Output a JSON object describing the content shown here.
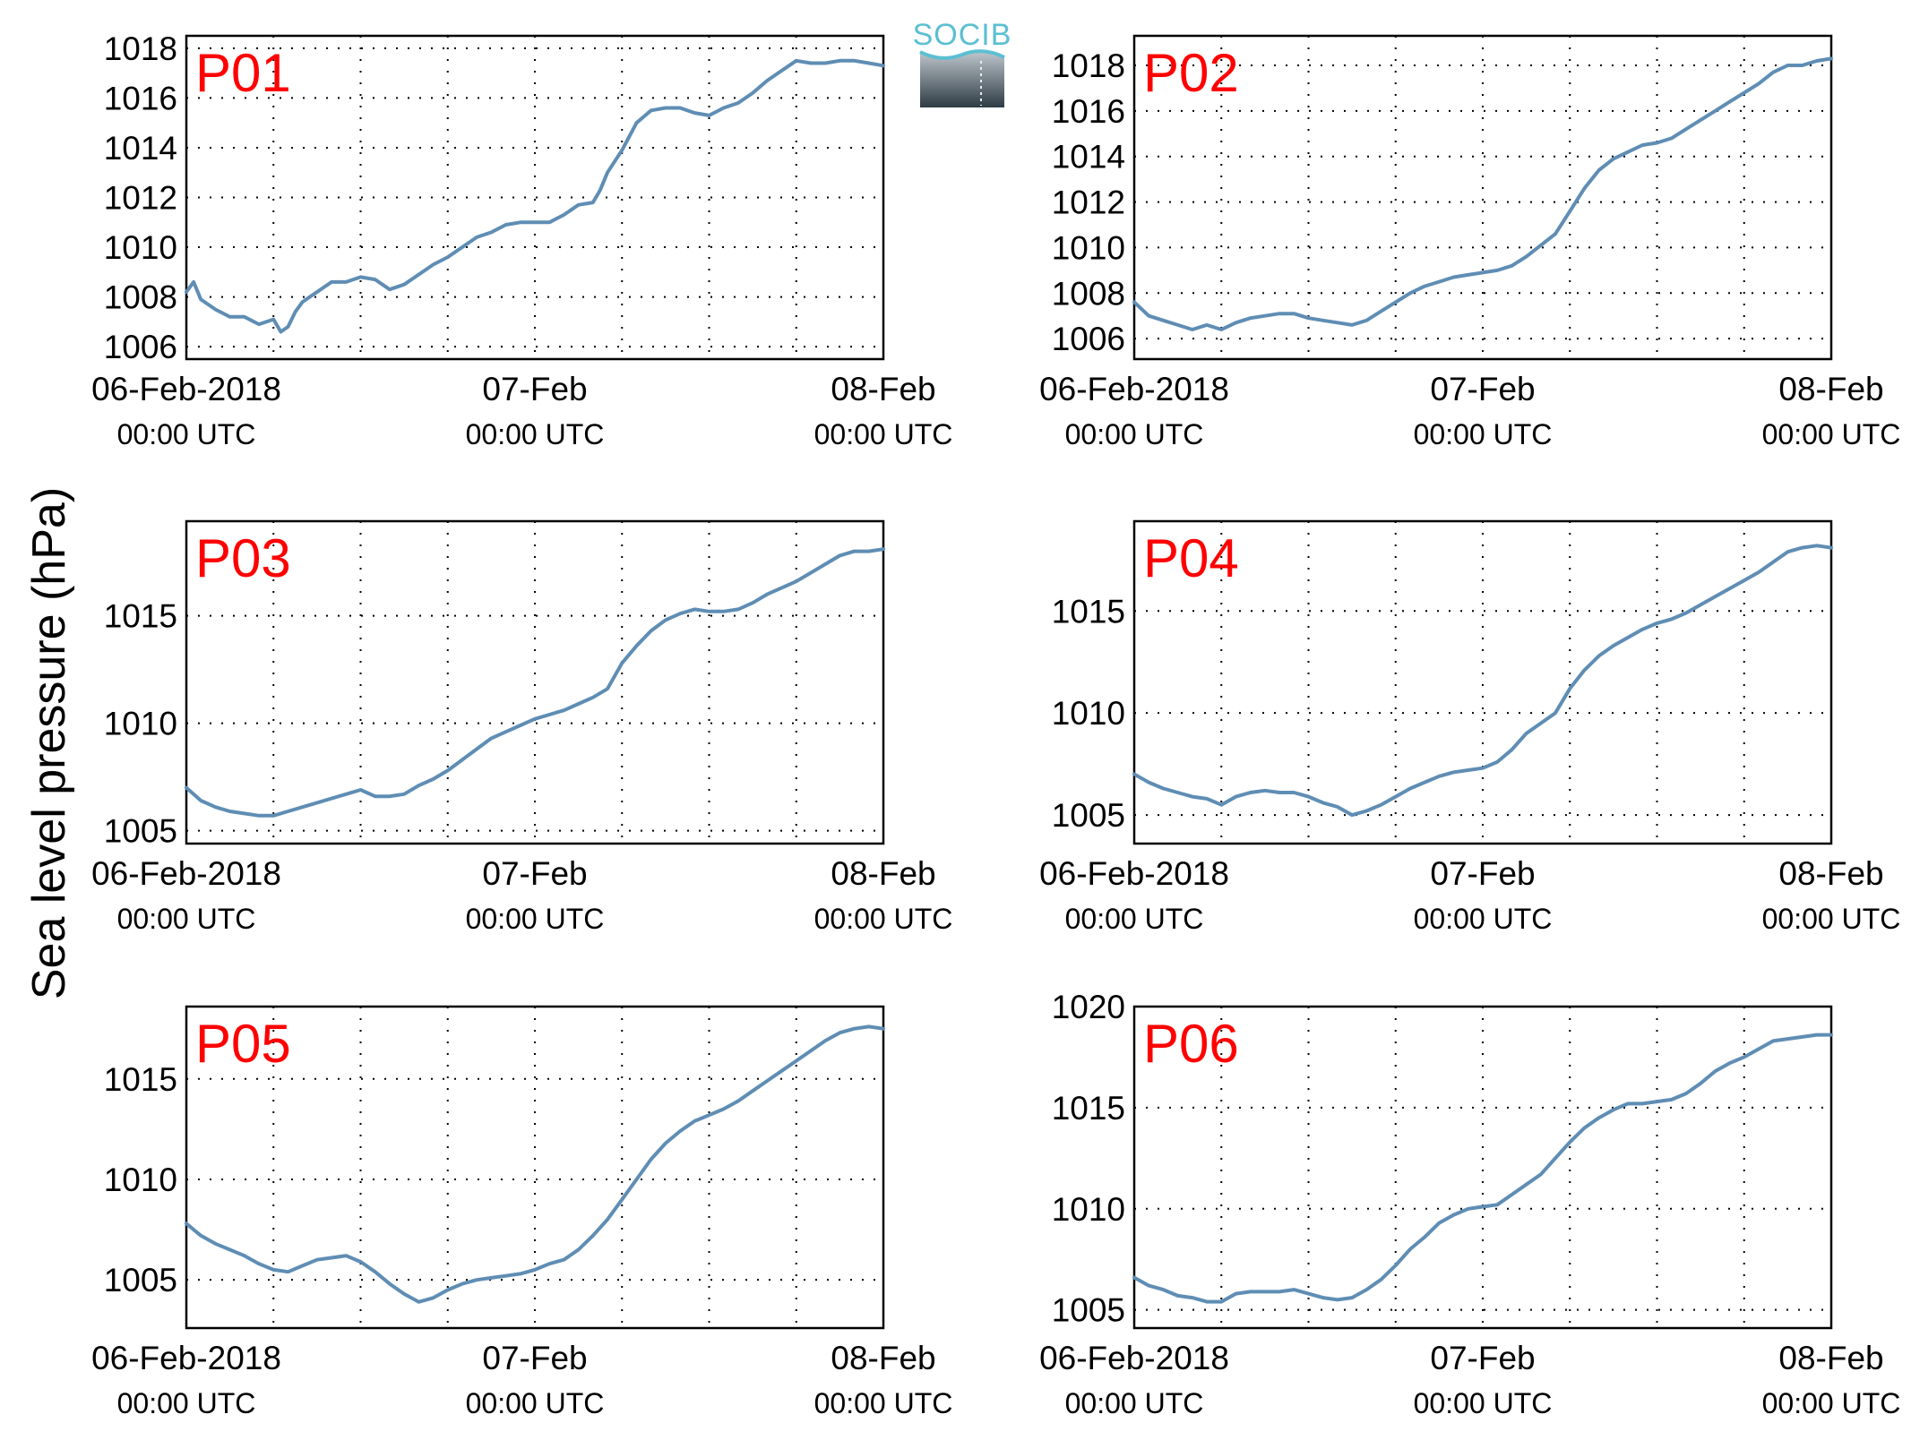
{
  "figure": {
    "ylabel": "Sea level pressure (hPa)",
    "logo_text": "SOCIB",
    "line_color": "#5f8db4",
    "label_color": "#ff0000"
  },
  "chart_data": [
    {
      "type": "line",
      "panel_label": "P01",
      "xlabel": "",
      "ylabel": "",
      "x_ticks": [
        "06-Feb-2018",
        "07-Feb",
        "08-Feb"
      ],
      "x_tick_sublabels": [
        "00:00 UTC",
        "00:00 UTC",
        "00:00 UTC"
      ],
      "xlim_hours": [
        0,
        48
      ],
      "ylim": [
        1005.5,
        1018.5
      ],
      "y_ticks": [
        1006,
        1008,
        1010,
        1012,
        1014,
        1016,
        1018
      ],
      "grid": true,
      "x_hours": [
        0,
        0.5,
        1,
        2,
        3,
        4,
        5,
        6,
        6.5,
        7,
        7.5,
        8,
        9,
        10,
        11,
        12,
        13,
        14,
        15,
        16,
        17,
        18,
        19,
        20,
        21,
        22,
        23,
        24,
        25,
        26,
        27,
        28,
        28.5,
        29,
        30,
        31,
        32,
        33,
        34,
        35,
        36,
        37,
        38,
        39,
        40,
        41,
        42,
        43,
        44,
        45,
        46,
        47,
        48
      ],
      "values": [
        1008.2,
        1008.6,
        1007.9,
        1007.5,
        1007.2,
        1007.2,
        1006.9,
        1007.1,
        1006.6,
        1006.8,
        1007.4,
        1007.8,
        1008.2,
        1008.6,
        1008.6,
        1008.8,
        1008.7,
        1008.3,
        1008.5,
        1008.9,
        1009.3,
        1009.6,
        1010.0,
        1010.4,
        1010.6,
        1010.9,
        1011.0,
        1011.0,
        1011.0,
        1011.3,
        1011.7,
        1011.8,
        1012.3,
        1013.0,
        1013.9,
        1015.0,
        1015.5,
        1015.6,
        1015.6,
        1015.4,
        1015.3,
        1015.6,
        1015.8,
        1016.2,
        1016.7,
        1017.1,
        1017.5,
        1017.4,
        1017.4,
        1017.5,
        1017.5,
        1017.4,
        1017.3
      ]
    },
    {
      "type": "line",
      "panel_label": "P02",
      "xlabel": "",
      "ylabel": "",
      "x_ticks": [
        "06-Feb-2018",
        "07-Feb",
        "08-Feb"
      ],
      "x_tick_sublabels": [
        "00:00 UTC",
        "00:00 UTC",
        "00:00 UTC"
      ],
      "xlim_hours": [
        0,
        48
      ],
      "ylim": [
        1005.1,
        1019.3
      ],
      "y_ticks": [
        1006,
        1008,
        1010,
        1012,
        1014,
        1016,
        1018
      ],
      "grid": true,
      "x_hours": [
        0,
        1,
        2,
        3,
        4,
        5,
        6,
        7,
        8,
        9,
        10,
        11,
        12,
        13,
        14,
        15,
        16,
        17,
        18,
        19,
        20,
        21,
        22,
        23,
        24,
        25,
        26,
        27,
        28,
        29,
        30,
        31,
        32,
        33,
        34,
        35,
        36,
        37,
        38,
        39,
        40,
        41,
        42,
        43,
        44,
        45,
        46,
        47,
        48
      ],
      "values": [
        1007.6,
        1007.0,
        1006.8,
        1006.6,
        1006.4,
        1006.6,
        1006.4,
        1006.7,
        1006.9,
        1007.0,
        1007.1,
        1007.1,
        1006.9,
        1006.8,
        1006.7,
        1006.6,
        1006.8,
        1007.2,
        1007.6,
        1008.0,
        1008.3,
        1008.5,
        1008.7,
        1008.8,
        1008.9,
        1009.0,
        1009.2,
        1009.6,
        1010.1,
        1010.6,
        1011.6,
        1012.6,
        1013.4,
        1013.9,
        1014.2,
        1014.5,
        1014.6,
        1014.8,
        1015.2,
        1015.6,
        1016.0,
        1016.4,
        1016.8,
        1017.2,
        1017.7,
        1018.0,
        1018.0,
        1018.2,
        1018.3
      ]
    },
    {
      "type": "line",
      "panel_label": "P03",
      "xlabel": "",
      "ylabel": "",
      "x_ticks": [
        "06-Feb-2018",
        "07-Feb",
        "08-Feb"
      ],
      "x_tick_sublabels": [
        "00:00 UTC",
        "00:00 UTC",
        "00:00 UTC"
      ],
      "xlim_hours": [
        0,
        48
      ],
      "ylim": [
        1004.4,
        1019.4
      ],
      "y_ticks": [
        1005,
        1010,
        1015
      ],
      "grid": true,
      "x_hours": [
        0,
        1,
        2,
        3,
        4,
        5,
        6,
        7,
        8,
        9,
        10,
        11,
        12,
        13,
        14,
        15,
        16,
        17,
        18,
        19,
        20,
        21,
        22,
        23,
        24,
        25,
        26,
        27,
        28,
        29,
        30,
        31,
        32,
        33,
        34,
        35,
        36,
        37,
        38,
        39,
        40,
        41,
        42,
        43,
        44,
        45,
        46,
        47,
        48
      ],
      "values": [
        1007.0,
        1006.4,
        1006.1,
        1005.9,
        1005.8,
        1005.7,
        1005.7,
        1005.9,
        1006.1,
        1006.3,
        1006.5,
        1006.7,
        1006.9,
        1006.6,
        1006.6,
        1006.7,
        1007.1,
        1007.4,
        1007.8,
        1008.3,
        1008.8,
        1009.3,
        1009.6,
        1009.9,
        1010.2,
        1010.4,
        1010.6,
        1010.9,
        1011.2,
        1011.6,
        1012.8,
        1013.6,
        1014.3,
        1014.8,
        1015.1,
        1015.3,
        1015.2,
        1015.2,
        1015.3,
        1015.6,
        1016.0,
        1016.3,
        1016.6,
        1017.0,
        1017.4,
        1017.8,
        1018.0,
        1018.0,
        1018.1
      ]
    },
    {
      "type": "line",
      "panel_label": "P04",
      "xlabel": "",
      "ylabel": "",
      "x_ticks": [
        "06-Feb-2018",
        "07-Feb",
        "08-Feb"
      ],
      "x_tick_sublabels": [
        "00:00 UTC",
        "00:00 UTC",
        "00:00 UTC"
      ],
      "xlim_hours": [
        0,
        48
      ],
      "ylim": [
        1003.6,
        1019.4
      ],
      "y_ticks": [
        1005,
        1010,
        1015
      ],
      "grid": true,
      "x_hours": [
        0,
        1,
        2,
        3,
        4,
        5,
        6,
        7,
        8,
        9,
        10,
        11,
        12,
        13,
        14,
        15,
        16,
        17,
        18,
        19,
        20,
        21,
        22,
        23,
        24,
        25,
        26,
        27,
        28,
        29,
        30,
        31,
        32,
        33,
        34,
        35,
        36,
        37,
        38,
        39,
        40,
        41,
        42,
        43,
        44,
        45,
        46,
        47,
        48
      ],
      "values": [
        1007.0,
        1006.6,
        1006.3,
        1006.1,
        1005.9,
        1005.8,
        1005.5,
        1005.9,
        1006.1,
        1006.2,
        1006.1,
        1006.1,
        1005.9,
        1005.6,
        1005.4,
        1005.0,
        1005.2,
        1005.5,
        1005.9,
        1006.3,
        1006.6,
        1006.9,
        1007.1,
        1007.2,
        1007.3,
        1007.6,
        1008.2,
        1009.0,
        1009.5,
        1010.0,
        1011.2,
        1012.1,
        1012.8,
        1013.3,
        1013.7,
        1014.1,
        1014.4,
        1014.6,
        1014.9,
        1015.3,
        1015.7,
        1016.1,
        1016.5,
        1016.9,
        1017.4,
        1017.9,
        1018.1,
        1018.2,
        1018.1
      ]
    },
    {
      "type": "line",
      "panel_label": "P05",
      "xlabel": "",
      "ylabel": "",
      "x_ticks": [
        "06-Feb-2018",
        "07-Feb",
        "08-Feb"
      ],
      "x_tick_sublabels": [
        "00:00 UTC",
        "00:00 UTC",
        "00:00 UTC"
      ],
      "xlim_hours": [
        0,
        48
      ],
      "ylim": [
        1002.6,
        1018.6
      ],
      "y_ticks": [
        1005,
        1010,
        1015
      ],
      "grid": true,
      "x_hours": [
        0,
        1,
        2,
        3,
        4,
        5,
        6,
        7,
        8,
        9,
        10,
        11,
        12,
        13,
        14,
        15,
        16,
        17,
        18,
        19,
        20,
        21,
        22,
        23,
        24,
        25,
        26,
        27,
        28,
        29,
        30,
        31,
        32,
        33,
        34,
        35,
        36,
        37,
        38,
        39,
        40,
        41,
        42,
        43,
        44,
        45,
        46,
        47,
        48
      ],
      "values": [
        1007.8,
        1007.2,
        1006.8,
        1006.5,
        1006.2,
        1005.8,
        1005.5,
        1005.4,
        1005.7,
        1006.0,
        1006.1,
        1006.2,
        1005.9,
        1005.4,
        1004.8,
        1004.3,
        1003.9,
        1004.1,
        1004.5,
        1004.8,
        1005.0,
        1005.1,
        1005.2,
        1005.3,
        1005.5,
        1005.8,
        1006.0,
        1006.5,
        1007.2,
        1008.0,
        1009.0,
        1010.0,
        1011.0,
        1011.8,
        1012.4,
        1012.9,
        1013.2,
        1013.5,
        1013.9,
        1014.4,
        1014.9,
        1015.4,
        1015.9,
        1016.4,
        1016.9,
        1017.3,
        1017.5,
        1017.6,
        1017.5
      ]
    },
    {
      "type": "line",
      "panel_label": "P06",
      "xlabel": "",
      "ylabel": "",
      "x_ticks": [
        "06-Feb-2018",
        "07-Feb",
        "08-Feb"
      ],
      "x_tick_sublabels": [
        "00:00 UTC",
        "00:00 UTC",
        "00:00 UTC"
      ],
      "xlim_hours": [
        0,
        48
      ],
      "ylim": [
        1004.1,
        1020.0
      ],
      "y_ticks": [
        1005,
        1010,
        1015,
        1020
      ],
      "grid": true,
      "x_hours": [
        0,
        1,
        2,
        3,
        4,
        5,
        6,
        7,
        8,
        9,
        10,
        11,
        12,
        13,
        14,
        15,
        16,
        17,
        18,
        19,
        20,
        21,
        22,
        23,
        24,
        25,
        26,
        27,
        28,
        29,
        30,
        31,
        32,
        33,
        34,
        35,
        36,
        37,
        38,
        39,
        40,
        41,
        42,
        43,
        44,
        45,
        46,
        47,
        48
      ],
      "values": [
        1006.6,
        1006.2,
        1006.0,
        1005.7,
        1005.6,
        1005.4,
        1005.4,
        1005.8,
        1005.9,
        1005.9,
        1005.9,
        1006.0,
        1005.8,
        1005.6,
        1005.5,
        1005.6,
        1006.0,
        1006.5,
        1007.2,
        1008.0,
        1008.6,
        1009.3,
        1009.7,
        1010.0,
        1010.1,
        1010.2,
        1010.7,
        1011.2,
        1011.7,
        1012.5,
        1013.3,
        1014.0,
        1014.5,
        1014.9,
        1015.2,
        1015.2,
        1015.3,
        1015.4,
        1015.7,
        1016.2,
        1016.8,
        1017.2,
        1017.5,
        1017.9,
        1018.3,
        1018.4,
        1018.5,
        1018.6,
        1018.6
      ]
    }
  ]
}
